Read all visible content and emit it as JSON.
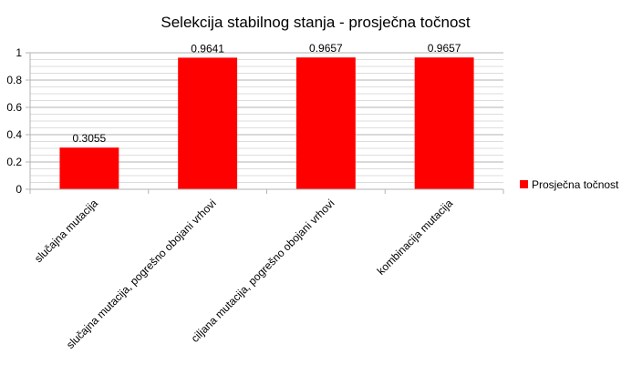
{
  "chart_data": {
    "type": "bar",
    "title": "Selekcija stabilnog stanja - prosječna točnost",
    "categories": [
      "slučajna mutacija",
      "slučajna mutacija, pogrešno obojani vrhovi",
      "ciljana mutacija, pogrešno obojani vrhovi",
      "kombinacija mutacija"
    ],
    "series": [
      {
        "name": "Prosječna točnost",
        "values": [
          0.3055,
          0.9641,
          0.9657,
          0.9657
        ],
        "value_labels": [
          "0.3055",
          "0.9641",
          "0.9657",
          "0.9657"
        ],
        "color": "#ff0000"
      }
    ],
    "ylim": [
      0,
      1
    ],
    "yticks": [
      "0",
      "0.2",
      "0.4",
      "0.6",
      "0.8",
      "1"
    ],
    "grid": true,
    "legend_position": "right",
    "xlabel": "",
    "ylabel": ""
  }
}
